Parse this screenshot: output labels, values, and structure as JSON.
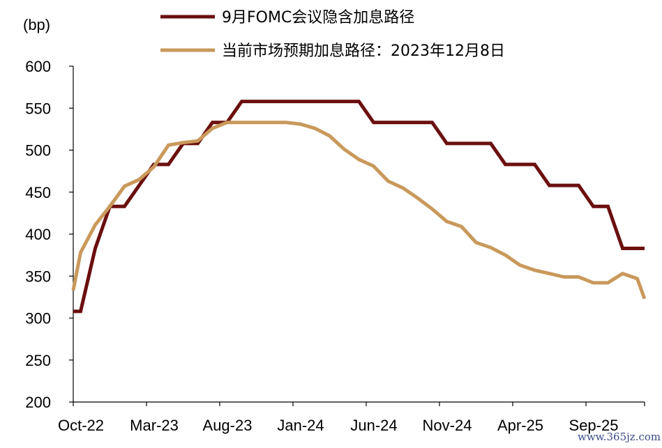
{
  "chart_data": {
    "type": "line",
    "ylabel": "(bp)",
    "ylim": [
      200,
      600
    ],
    "yticks": [
      600,
      550,
      500,
      450,
      400,
      350,
      300,
      250,
      200
    ],
    "xlim": [
      0,
      39
    ],
    "xticks": [
      {
        "x": 0,
        "label": "Oct-22"
      },
      {
        "x": 5,
        "label": "Mar-23"
      },
      {
        "x": 10,
        "label": "Aug-23"
      },
      {
        "x": 15,
        "label": "Jan-24"
      },
      {
        "x": 20,
        "label": "Jun-24"
      },
      {
        "x": 25,
        "label": "Nov-24"
      },
      {
        "x": 30,
        "label": "Apr-25"
      },
      {
        "x": 35,
        "label": "Sep-25"
      }
    ],
    "grid": false,
    "legend_position": "top",
    "series": [
      {
        "name": "9月FOMC会议隐含加息路径",
        "color": "#6b0f0f",
        "points": [
          [
            0,
            308
          ],
          [
            0.5,
            308
          ],
          [
            1.5,
            383
          ],
          [
            2.5,
            433
          ],
          [
            3.5,
            433
          ],
          [
            5.5,
            483
          ],
          [
            6.5,
            483
          ],
          [
            7.5,
            508
          ],
          [
            8.5,
            508
          ],
          [
            9.5,
            533
          ],
          [
            10.5,
            533
          ],
          [
            11.5,
            558
          ],
          [
            19.5,
            558
          ],
          [
            20.5,
            533
          ],
          [
            24.5,
            533
          ],
          [
            25.5,
            508
          ],
          [
            28.5,
            508
          ],
          [
            29.5,
            483
          ],
          [
            31.5,
            483
          ],
          [
            32.5,
            458
          ],
          [
            34.5,
            458
          ],
          [
            35.5,
            433
          ],
          [
            36.5,
            433
          ],
          [
            37.5,
            383
          ],
          [
            40,
            383
          ]
        ]
      },
      {
        "name": "当前市场预期加息路径：2023年12月8日",
        "color": "#c9995b",
        "points": [
          [
            0,
            333
          ],
          [
            0.5,
            378
          ],
          [
            1.5,
            411
          ],
          [
            2.5,
            433
          ],
          [
            3.5,
            457
          ],
          [
            4.5,
            465
          ],
          [
            5.5,
            480
          ],
          [
            6.5,
            506
          ],
          [
            7.5,
            509
          ],
          [
            8.5,
            511
          ],
          [
            9.5,
            526
          ],
          [
            10.5,
            533
          ],
          [
            11.5,
            533
          ],
          [
            12.5,
            533
          ],
          [
            13.5,
            533
          ],
          [
            14.5,
            533
          ],
          [
            15.5,
            531
          ],
          [
            16.5,
            526
          ],
          [
            17.5,
            517
          ],
          [
            18.5,
            501
          ],
          [
            19.5,
            489
          ],
          [
            20.5,
            481
          ],
          [
            21.5,
            463
          ],
          [
            22.5,
            455
          ],
          [
            23.5,
            443
          ],
          [
            24.5,
            430
          ],
          [
            25.5,
            415
          ],
          [
            26.5,
            409
          ],
          [
            27.5,
            390
          ],
          [
            28.5,
            384
          ],
          [
            29.5,
            375
          ],
          [
            30.5,
            363
          ],
          [
            31.5,
            357
          ],
          [
            32.5,
            353
          ],
          [
            33.5,
            349
          ],
          [
            34.5,
            349
          ],
          [
            35.5,
            342
          ],
          [
            36.5,
            342
          ],
          [
            37.5,
            353
          ],
          [
            38.5,
            347
          ],
          [
            39.5,
            323
          ],
          [
            40,
            323
          ]
        ]
      }
    ]
  },
  "watermark": "www.365jz.com"
}
